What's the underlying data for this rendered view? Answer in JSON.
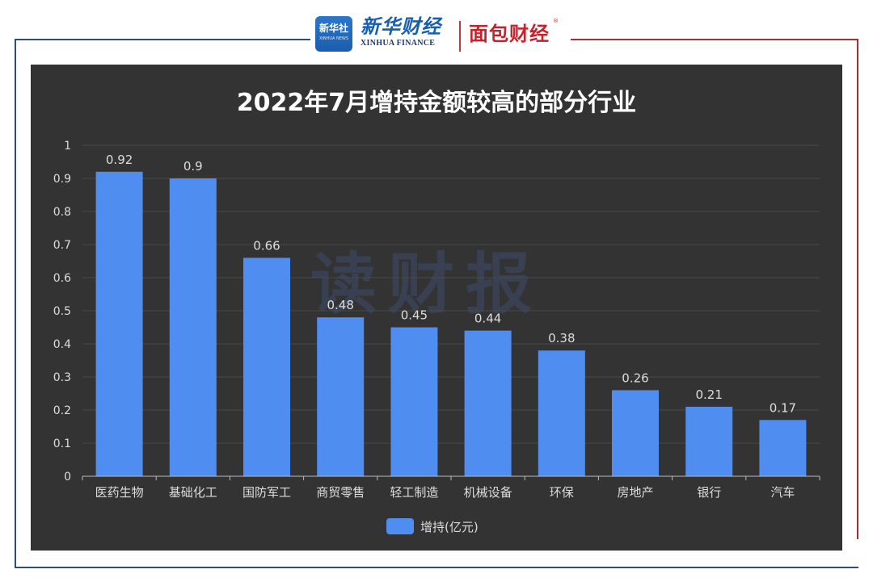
{
  "header": {
    "logo_text": "新华社",
    "logo_subtext": "XINHUA NEWS",
    "brand_name": "新华财经",
    "brand_english": "XINHUA FINANCE",
    "partner_brand": "面包财经",
    "partner_mark": "®"
  },
  "watermark": "读财报",
  "colors": {
    "background": "#333333",
    "bar": "#4f8df0",
    "frame_left": "#2d4b8a",
    "frame_right": "#b22a2a"
  },
  "chart_data": {
    "type": "bar",
    "title": "2022年7月增持金额较高的部分行业",
    "categories": [
      "医药生物",
      "基础化工",
      "国防军工",
      "商贸零售",
      "轻工制造",
      "机械设备",
      "环保",
      "房地产",
      "银行",
      "汽车"
    ],
    "series": [
      {
        "name": "增持(亿元)",
        "values": [
          0.92,
          0.9,
          0.66,
          0.48,
          0.45,
          0.44,
          0.38,
          0.26,
          0.21,
          0.17
        ]
      }
    ],
    "data_labels": [
      "0.92",
      "0.9",
      "0.66",
      "0.48",
      "0.45",
      "0.44",
      "0.38",
      "0.26",
      "0.21",
      "0.17"
    ],
    "yticks": [
      "0",
      "0.1",
      "0.2",
      "0.3",
      "0.4",
      "0.5",
      "0.6",
      "0.7",
      "0.8",
      "0.9",
      "1"
    ],
    "ylim": [
      0,
      1
    ],
    "grid": true,
    "legend_position": "bottom-center"
  }
}
